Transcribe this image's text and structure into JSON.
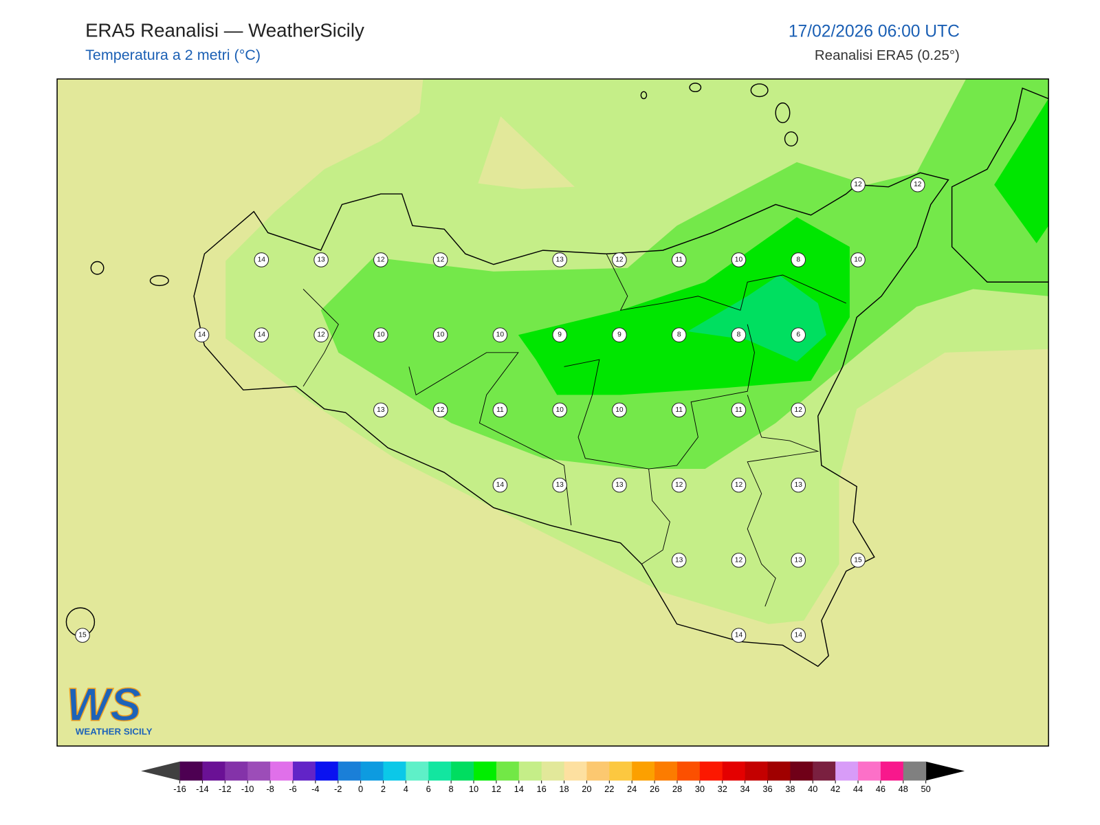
{
  "header": {
    "title": "ERA5 Reanalisi — WeatherSicily",
    "subtitle": "Temperatura a 2 metri (°C)",
    "datetime": "17/02/2026 06:00 UTC",
    "source": "Reanalisi ERA5 (0.25°)"
  },
  "map": {
    "station_values": [
      12,
      12,
      14,
      13,
      12,
      12,
      13,
      12,
      11,
      10,
      8,
      10,
      14,
      14,
      12,
      10,
      10,
      10,
      9,
      9,
      8,
      8,
      6,
      13,
      12,
      11,
      10,
      10,
      11,
      11,
      12,
      14,
      13,
      13,
      12,
      12,
      13,
      13,
      12,
      13,
      15,
      15,
      14,
      14
    ]
  },
  "colorbar": {
    "ticks": [
      -16,
      -14,
      -12,
      -10,
      -8,
      -6,
      -4,
      -2,
      0,
      2,
      4,
      6,
      8,
      10,
      12,
      14,
      16,
      18,
      20,
      22,
      24,
      26,
      28,
      30,
      32,
      34,
      36,
      38,
      40,
      42,
      44,
      46,
      48,
      50
    ],
    "colors": [
      "#4d0052",
      "#6a1195",
      "#8433a9",
      "#9c4db8",
      "#e070ea",
      "#6224c7",
      "#0a12f0",
      "#1a7fd8",
      "#0d9be0",
      "#0bc8e8",
      "#5ff0c8",
      "#12e6a0",
      "#00dd60",
      "#00ee00",
      "#72e846",
      "#c5ee88",
      "#e2e89a",
      "#fde0a0",
      "#fcc870",
      "#fcc840",
      "#fca000",
      "#fc7c00",
      "#fc5000",
      "#fc1800",
      "#e40000",
      "#c40000",
      "#a00000",
      "#700018",
      "#7a2040",
      "#d89cf8",
      "#fc70c8",
      "#f8188c",
      "#808080",
      "#383838"
    ],
    "under_color": "#404040",
    "over_color": "#000000"
  },
  "logo": {
    "mark": "WS",
    "name": "WEATHER SICILY"
  }
}
